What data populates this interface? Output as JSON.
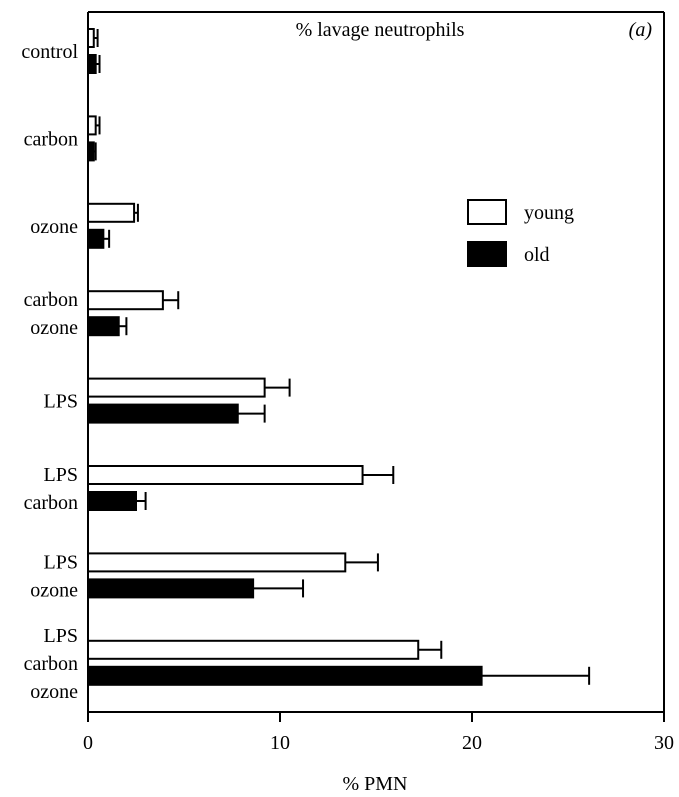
{
  "chart_data": {
    "type": "bar",
    "orientation": "horizontal",
    "title": "% lavage neutrophils",
    "panel_label": "(a)",
    "xlabel": "% PMN",
    "ylabel": "",
    "xlim": [
      0,
      30
    ],
    "xticks": [
      0,
      10,
      20,
      30
    ],
    "xtick_labels": [
      "0",
      "10",
      "20",
      "30"
    ],
    "grid": false,
    "legend_position": "right",
    "categories": [
      {
        "lines": [
          "control"
        ]
      },
      {
        "lines": [
          "carbon"
        ]
      },
      {
        "lines": [
          "ozone"
        ]
      },
      {
        "lines": [
          "carbon",
          "ozone"
        ]
      },
      {
        "lines": [
          "LPS"
        ]
      },
      {
        "lines": [
          "LPS",
          "carbon"
        ]
      },
      {
        "lines": [
          "LPS",
          "ozone"
        ]
      },
      {
        "lines": [
          "LPS",
          "carbon",
          "ozone"
        ]
      }
    ],
    "series": [
      {
        "name": "young",
        "fill": "#ffffff",
        "values": [
          0.3,
          0.4,
          2.4,
          3.9,
          9.2,
          14.3,
          13.4,
          17.2
        ],
        "errors": [
          0.2,
          0.2,
          0.2,
          0.8,
          1.3,
          1.6,
          1.7,
          1.2
        ]
      },
      {
        "name": "old",
        "fill": "#000000",
        "values": [
          0.4,
          0.3,
          0.8,
          1.6,
          7.8,
          2.5,
          8.6,
          20.5
        ],
        "errors": [
          0.2,
          0.1,
          0.3,
          0.4,
          1.4,
          0.5,
          2.6,
          5.6
        ]
      }
    ]
  }
}
